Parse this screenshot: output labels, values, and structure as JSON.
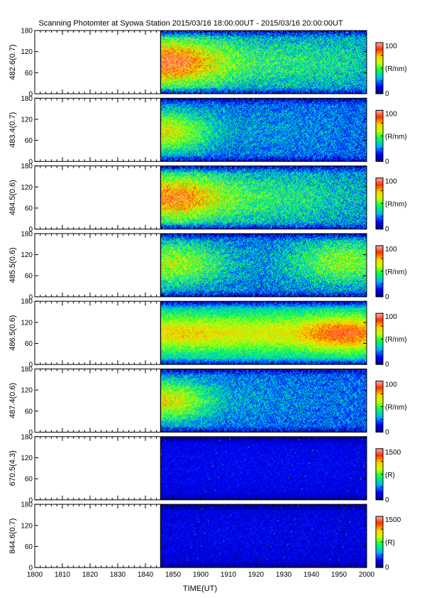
{
  "chart_data": {
    "type": "heatmap",
    "title": "Scanning Photomter at Syowa Station  2015/03/16 18:00:00UT - 2015/03/16 20:00:00UT",
    "xlabel": "TIME(UT)",
    "x_ticks": [
      "1800",
      "1810",
      "1820",
      "1830",
      "1840",
      "1850",
      "1900",
      "1910",
      "1920",
      "1930",
      "1940",
      "1950",
      "2000"
    ],
    "x_range_minutes": [
      0,
      120
    ],
    "data_start_minute": 45.5,
    "y_ticks": [
      "0",
      "60",
      "120",
      "180"
    ],
    "y_range": [
      0,
      180
    ],
    "colorscale": [
      "#00007a",
      "#0000ff",
      "#00b4ff",
      "#00ff50",
      "#c8ff00",
      "#ffd000",
      "#ff3000",
      "#ffb0b0"
    ],
    "panels": [
      {
        "ylabel": "482.6(0.7)",
        "cbar_max": "100",
        "cbar_min": "0",
        "cbar_unit": "(R/nm)",
        "base": 25,
        "noise": 0.9,
        "blobs": [
          {
            "t": 47,
            "y": 90,
            "amp": 55,
            "ts": 14,
            "ys": 45
          },
          {
            "t": 85,
            "y": 90,
            "amp": 18,
            "ts": 35,
            "ys": 55
          }
        ]
      },
      {
        "ylabel": "483.4(0.7)",
        "cbar_max": "100",
        "cbar_min": "0",
        "cbar_unit": "(R/nm)",
        "base": 22,
        "noise": 0.8,
        "blobs": [
          {
            "t": 47,
            "y": 85,
            "amp": 38,
            "ts": 10,
            "ys": 40
          },
          {
            "t": 70,
            "y": 90,
            "amp": 8,
            "ts": 30,
            "ys": 50
          }
        ]
      },
      {
        "ylabel": "484.5(0.6)",
        "cbar_max": "100",
        "cbar_min": "0",
        "cbar_unit": "(R/nm)",
        "base": 25,
        "noise": 0.9,
        "blobs": [
          {
            "t": 48,
            "y": 90,
            "amp": 48,
            "ts": 14,
            "ys": 45
          },
          {
            "t": 80,
            "y": 90,
            "amp": 18,
            "ts": 30,
            "ys": 55
          }
        ]
      },
      {
        "ylabel": "485.5(0.6)",
        "cbar_max": "100",
        "cbar_min": "0",
        "cbar_unit": "(R/nm)",
        "base": 24,
        "noise": 0.9,
        "blobs": [
          {
            "t": 50,
            "y": 95,
            "amp": 35,
            "ts": 14,
            "ys": 45
          },
          {
            "t": 112,
            "y": 100,
            "amp": 32,
            "ts": 14,
            "ys": 45
          }
        ]
      },
      {
        "ylabel": "486.5(0.6)",
        "cbar_max": "100",
        "cbar_min": "0",
        "cbar_unit": "(R/nm)",
        "base": 30,
        "noise": 0.6,
        "blobs": [
          {
            "t": 80,
            "y": 90,
            "amp": 34,
            "ts": 60,
            "ys": 40
          },
          {
            "t": 112,
            "y": 88,
            "amp": 28,
            "ts": 10,
            "ys": 35
          },
          {
            "t": 50,
            "y": 90,
            "amp": 10,
            "ts": 12,
            "ys": 35
          }
        ]
      },
      {
        "ylabel": "487.4(0.6)",
        "cbar_max": "100",
        "cbar_min": "0",
        "cbar_unit": "(R/nm)",
        "base": 22,
        "noise": 0.8,
        "blobs": [
          {
            "t": 47,
            "y": 90,
            "amp": 42,
            "ts": 11,
            "ys": 40
          },
          {
            "t": 75,
            "y": 95,
            "amp": 6,
            "ts": 30,
            "ys": 50
          }
        ]
      },
      {
        "ylabel": "670.5(4.3)",
        "cbar_max": "1500",
        "cbar_min": "0",
        "cbar_unit": "(R)",
        "base": 10,
        "noise": 0.3,
        "blobs": [
          {
            "t": 80,
            "y": 100,
            "amp": 3,
            "ts": 60,
            "ys": 60
          }
        ]
      },
      {
        "ylabel": "844.6(0.7)",
        "cbar_max": "1500",
        "cbar_min": "0",
        "cbar_unit": "(R)",
        "base": 9,
        "noise": 0.35,
        "blobs": [
          {
            "t": 80,
            "y": 100,
            "amp": 3,
            "ts": 60,
            "ys": 60
          }
        ]
      }
    ]
  }
}
